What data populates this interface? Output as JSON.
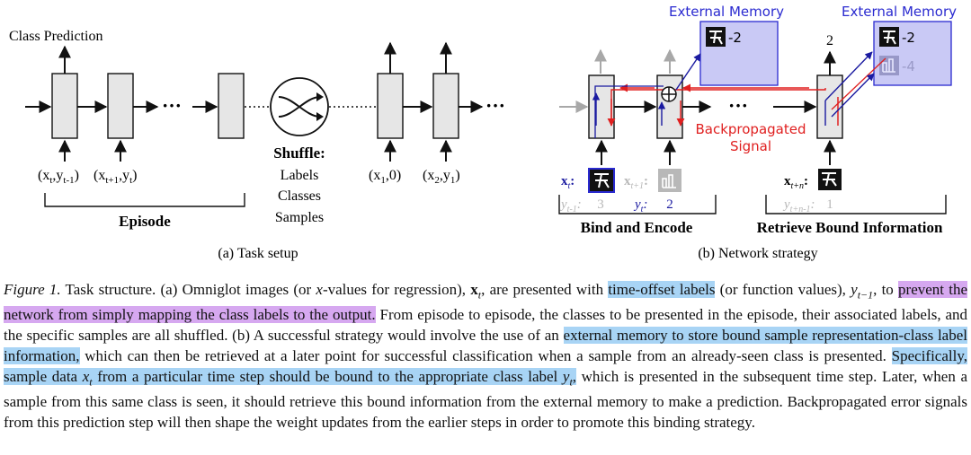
{
  "panel_a": {
    "top_label": "Class Prediction",
    "input_label_1": "(x",
    "input_label_1_sub": "t",
    "input_label_1_rest": ",y",
    "input_label_1_sub2": "t-1",
    "input_label_1_close": ")",
    "input_label_2": "(x",
    "input_label_2_sub": "t+1",
    "input_label_2_rest": ",y",
    "input_label_2_sub2": "t",
    "input_label_2_close": ")",
    "episode_label": "Episode",
    "shuffle_title": "Shuffle:",
    "shuffle_items": [
      "Labels",
      "Classes",
      "Samples"
    ],
    "input_label_3": "(x",
    "input_label_3_sub": "1",
    "input_label_3_rest": ",0)",
    "input_label_4": "(x",
    "input_label_4_sub": "2",
    "input_label_4_rest": ",y",
    "input_label_4_sub2": "1",
    "input_label_4_close": ")",
    "caption": "(a) Task setup"
  },
  "panel_b": {
    "memory_title_1": "External Memory",
    "memory_title_2": "External Memory",
    "memory_entry_1": "-2",
    "memory_entry_2a": "-2",
    "memory_entry_2b": "-4",
    "output_label": "2",
    "backprop_line1": "Backpropagated",
    "backprop_line2": "Signal",
    "xt_label": "x",
    "xt_sub": "t",
    "yt1_label": "y",
    "yt1_sub": "t-1",
    "yt1_value": "3",
    "xt1_label": "x",
    "xt1_sub": "t+1",
    "yt_label": "y",
    "yt_sub": "t",
    "yt_value": "2",
    "xtn_label": "x",
    "xtn_sub": "t+n",
    "ytn_label": "y",
    "ytn_sub": "t+n-1",
    "ytn_value": "1",
    "bind_label": "Bind and Encode",
    "retrieve_label": "Retrieve Bound Information",
    "caption": "(b) Network strategy"
  },
  "caption": {
    "fig_label": "Figure 1.",
    "s1": " Task structure. (a) Omniglot images (or ",
    "s1_var": "x",
    "s2": "-values for regression), ",
    "s2_var": "x",
    "s2_sub": "t",
    "s3": ", are presented with ",
    "hl1": "time-offset labels",
    "s4": " (or function values), ",
    "s4_var": "y",
    "s4_sub": "t−1",
    "s5": ", to ",
    "hl2": "prevent the network from simply mapping the class labels to the output.",
    "s6": " From episode to episode, the classes to be presented in the episode, their associated labels, and the specific samples are all shuffled. (b) A successful strategy would involve the use of an ",
    "hl3": "external memory to store bound sample representation-class label information,",
    "s7": " which can then be retrieved at a later point for successful classification when a sample from an already-seen class is presented. ",
    "hl4a": "Specifically, sample data ",
    "hl4_var": "x",
    "hl4_sub": "t",
    "hl4b": " from a particular time step should be bound to the appropriate class label ",
    "hl4_var2": "y",
    "hl4_sub2": "t",
    "hl4c": ",",
    "s8": " which is presented in the subsequent time step. Later, when a sample from this same class is seen, it should retrieve this bound information from the external memory to make a prediction. Backpropagated error signals from this prediction step will then shape the weight updates from the earlier steps in order to promote this binding strategy."
  },
  "colors": {
    "box_fill": "#e6e6e6",
    "memory_fill": "#c9c9f5",
    "memory_text": "#2a2ad0",
    "backprop": "#e02020",
    "forward_blue": "#1a1aa0",
    "gray_arrow": "#a8a8a8",
    "highlight_blue": "#a8d4f5",
    "highlight_purple": "#d6a8f0"
  }
}
